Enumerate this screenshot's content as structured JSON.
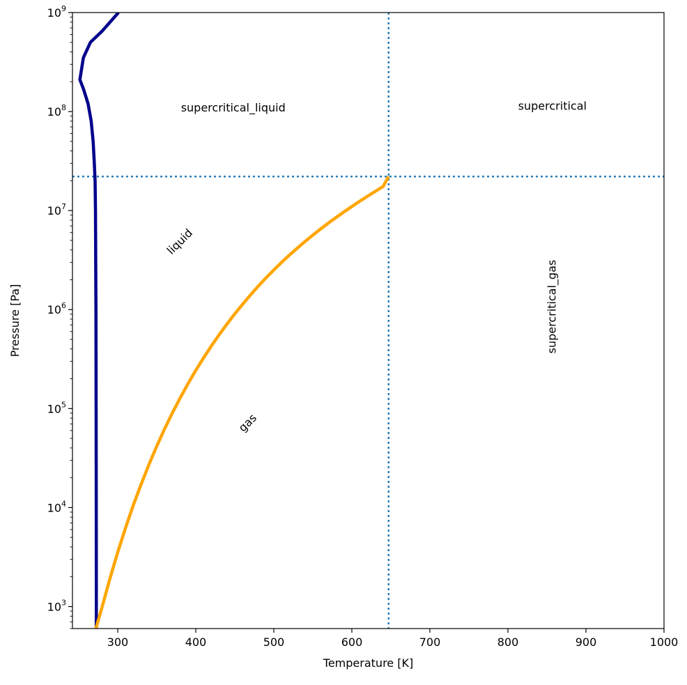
{
  "chart_data": {
    "type": "line",
    "xlabel": "Temperature [K]",
    "ylabel": "Pressure [Pa]",
    "xlim": [
      242,
      1000
    ],
    "ylim": [
      600,
      1000000000
    ],
    "yscale": "log",
    "grid": false,
    "x_ticks": [
      300,
      400,
      500,
      600,
      700,
      800,
      900,
      1000
    ],
    "y_ticks": [
      {
        "value": 1000,
        "base": "10",
        "exp": "3"
      },
      {
        "value": 10000,
        "base": "10",
        "exp": "4"
      },
      {
        "value": 100000,
        "base": "10",
        "exp": "5"
      },
      {
        "value": 1000000,
        "base": "10",
        "exp": "6"
      },
      {
        "value": 10000000,
        "base": "10",
        "exp": "7"
      },
      {
        "value": 100000000,
        "base": "10",
        "exp": "8"
      },
      {
        "value": 1000000000,
        "base": "10",
        "exp": "9"
      }
    ],
    "series": [
      {
        "color": "#00008b",
        "x": [
          272.5,
          272.6,
          272.5,
          272.3,
          272.1,
          271.8,
          271.5,
          271.0,
          270.0,
          268.5,
          266.0,
          262.0,
          256.0,
          251.5,
          256.0,
          265.0,
          280.0,
          301.0
        ],
        "y": [
          600,
          1000,
          10000,
          100000,
          1000000,
          3000000,
          10000000,
          20000000,
          30000000,
          50000000,
          80000000,
          120000000,
          170000000,
          210000000,
          350000000,
          500000000,
          650000000,
          1000000000
        ]
      },
      {
        "color": "#ffa500",
        "x": [
          272.0,
          280,
          290,
          300,
          310,
          320,
          330,
          340,
          350,
          360,
          370,
          380,
          390,
          400,
          410,
          420,
          430,
          440,
          450,
          460,
          470,
          480,
          490,
          500,
          510,
          520,
          530,
          540,
          550,
          560,
          570,
          580,
          590,
          600,
          610,
          620,
          630,
          640,
          647.1
        ],
        "y": [
          600,
          991,
          1920,
          3540,
          6230,
          10600,
          17200,
          27200,
          41700,
          62200,
          90400,
          128000,
          178000,
          243000,
          325000,
          429000,
          557000,
          715000,
          905000,
          1130000,
          1400000,
          1720000,
          2090000,
          2510000,
          3000000,
          3550000,
          4170000,
          4870000,
          5650000,
          6520000,
          7480000,
          8540000,
          9710000,
          10990000,
          12400000,
          13940000,
          15630000,
          17480000,
          22064000
        ]
      }
    ],
    "reference_lines": [
      {
        "orientation": "vertical",
        "x": 647.1,
        "style": "dotted",
        "color": "#1f77b4"
      },
      {
        "orientation": "horizontal",
        "y": 22064000,
        "style": "dotted",
        "color": "#1f77b4"
      }
    ],
    "annotations": [
      {
        "text": "supercritical_liquid",
        "x": 448,
        "y": 108000000,
        "rotation": 0
      },
      {
        "text": "supercritical",
        "x": 857,
        "y": 112000000,
        "rotation": 0
      },
      {
        "text": "liquid",
        "x": 380,
        "y": 4800000,
        "rotation": -45
      },
      {
        "text": "gas",
        "x": 467,
        "y": 71000,
        "rotation": -45
      },
      {
        "text": "supercritical_gas",
        "x": 857,
        "y": 1070000,
        "rotation": -90
      }
    ]
  }
}
